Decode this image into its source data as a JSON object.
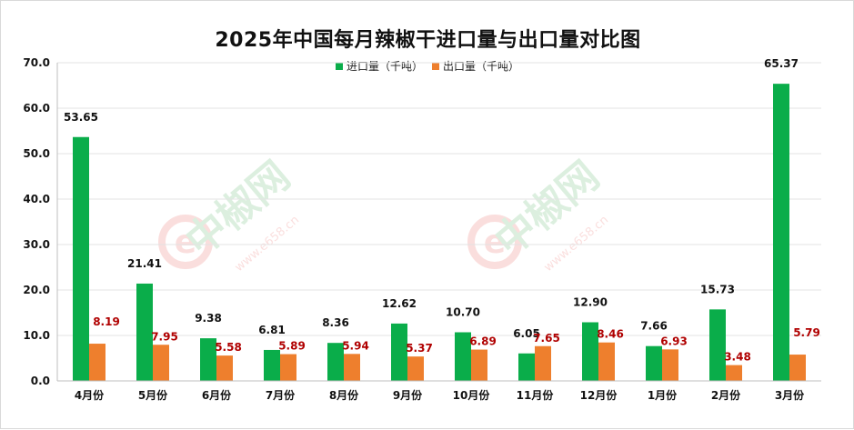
{
  "chart_data": {
    "type": "bar",
    "title": "2025年中国每月辣椒干进口量与出口量对比图",
    "categories": [
      "4月份",
      "5月份",
      "6月份",
      "7月份",
      "8月份",
      "9月份",
      "10月份",
      "11月份",
      "12月份",
      "1月份",
      "2月份",
      "3月份"
    ],
    "series": [
      {
        "name": "进口量（千吨）",
        "color": "#0aad4a",
        "values": [
          53.65,
          21.41,
          9.38,
          6.81,
          8.36,
          12.62,
          10.7,
          6.05,
          12.9,
          7.66,
          15.73,
          65.37
        ],
        "labels": [
          "53.65",
          "21.41",
          "9.38",
          "6.81",
          "8.36",
          "12.62",
          "10.70",
          "6.05",
          "12.90",
          "7.66",
          "15.73",
          "65.37"
        ]
      },
      {
        "name": "出口量（千吨）",
        "color": "#ee7f2d",
        "values": [
          8.19,
          7.95,
          5.58,
          5.89,
          5.94,
          5.37,
          6.89,
          7.65,
          8.46,
          6.93,
          3.48,
          5.79
        ],
        "labels": [
          "8.19",
          "7.95",
          "5.58",
          "5.89",
          "5.94",
          "5.37",
          "6.89",
          "7.65",
          "8.46",
          "6.93",
          "3.48",
          "5.79"
        ]
      }
    ],
    "ylim": [
      0,
      70
    ],
    "yticks": [
      "0.0",
      "10.0",
      "20.0",
      "30.0",
      "40.0",
      "50.0",
      "60.0",
      "70.0"
    ],
    "grid": true,
    "legend_position": "top-center",
    "export_label_color": "#b00000"
  },
  "watermark": {
    "brand": "中椒网",
    "url": "www.e658.cn",
    "mark_letter": "e"
  }
}
